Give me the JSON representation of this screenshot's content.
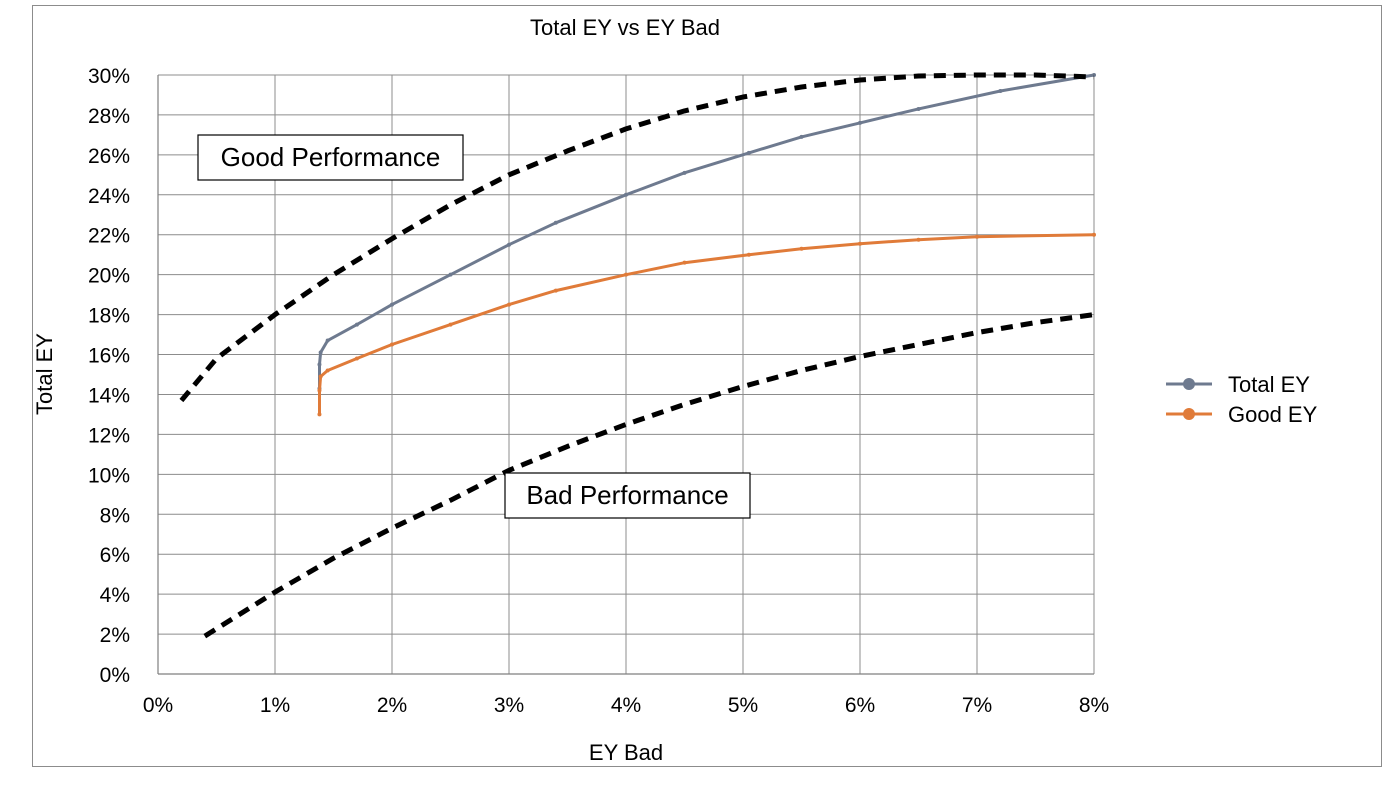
{
  "chart_data": {
    "type": "line",
    "title": "Total EY vs EY Bad",
    "xlabel": "EY Bad",
    "ylabel": "Total EY",
    "xlim": [
      0,
      8
    ],
    "ylim": [
      0,
      30
    ],
    "x_ticks": [
      0,
      1,
      2,
      3,
      4,
      5,
      6,
      7,
      8
    ],
    "y_ticks": [
      0,
      2,
      4,
      6,
      8,
      10,
      12,
      14,
      16,
      18,
      20,
      22,
      24,
      26,
      28,
      30
    ],
    "x_tick_labels": [
      "0%",
      "1%",
      "2%",
      "3%",
      "4%",
      "5%",
      "6%",
      "7%",
      "8%"
    ],
    "y_tick_labels": [
      "0%",
      "2%",
      "4%",
      "6%",
      "8%",
      "10%",
      "12%",
      "14%",
      "16%",
      "18%",
      "20%",
      "22%",
      "24%",
      "26%",
      "28%",
      "30%"
    ],
    "grid": true,
    "legend_position": "right",
    "series": [
      {
        "name": "Total EY",
        "color": "#6e7a8f",
        "style": "solid",
        "x": [
          1.38,
          1.38,
          1.39,
          1.45,
          1.7,
          2.0,
          2.5,
          3.0,
          3.4,
          4.0,
          4.5,
          5.05,
          5.5,
          6.0,
          6.5,
          7.2,
          8.0
        ],
        "y": [
          14.3,
          15.5,
          16.1,
          16.7,
          17.5,
          18.5,
          20.0,
          21.5,
          22.6,
          24.0,
          25.1,
          26.1,
          26.9,
          27.6,
          28.3,
          29.2,
          30.0
        ]
      },
      {
        "name": "Good EY",
        "color": "#e07b39",
        "style": "solid",
        "x": [
          1.38,
          1.38,
          1.39,
          1.45,
          1.7,
          2.0,
          2.5,
          3.0,
          3.4,
          4.0,
          4.5,
          5.05,
          5.5,
          6.0,
          6.5,
          7.0,
          8.0
        ],
        "y": [
          13.0,
          14.2,
          14.9,
          15.2,
          15.8,
          16.5,
          17.5,
          18.5,
          19.2,
          20.0,
          20.6,
          21.0,
          21.3,
          21.55,
          21.75,
          21.9,
          22.0
        ]
      },
      {
        "color": "#000000",
        "style": "dashed",
        "x": [
          0.2,
          0.5,
          1.0,
          1.5,
          2.0,
          2.5,
          3.0,
          3.5,
          4.0,
          4.5,
          5.0,
          5.5,
          6.0,
          6.5,
          7.0,
          7.5,
          8.0
        ],
        "y": [
          13.7,
          15.8,
          18.0,
          20.0,
          21.8,
          23.5,
          25.0,
          26.2,
          27.3,
          28.2,
          28.9,
          29.4,
          29.75,
          29.95,
          30.0,
          30.0,
          29.9
        ]
      },
      {
        "color": "#000000",
        "style": "dashed",
        "x": [
          0.4,
          1.0,
          1.5,
          2.0,
          2.5,
          3.0,
          3.5,
          4.0,
          4.5,
          5.0,
          5.5,
          6.0,
          6.5,
          7.0,
          7.5,
          8.0
        ],
        "y": [
          1.9,
          4.1,
          5.8,
          7.3,
          8.7,
          10.2,
          11.4,
          12.5,
          13.5,
          14.4,
          15.2,
          15.9,
          16.5,
          17.1,
          17.6,
          18.0
        ]
      }
    ],
    "annotations": [
      {
        "text": "Good Performance"
      },
      {
        "text": "Bad Performance"
      }
    ]
  }
}
